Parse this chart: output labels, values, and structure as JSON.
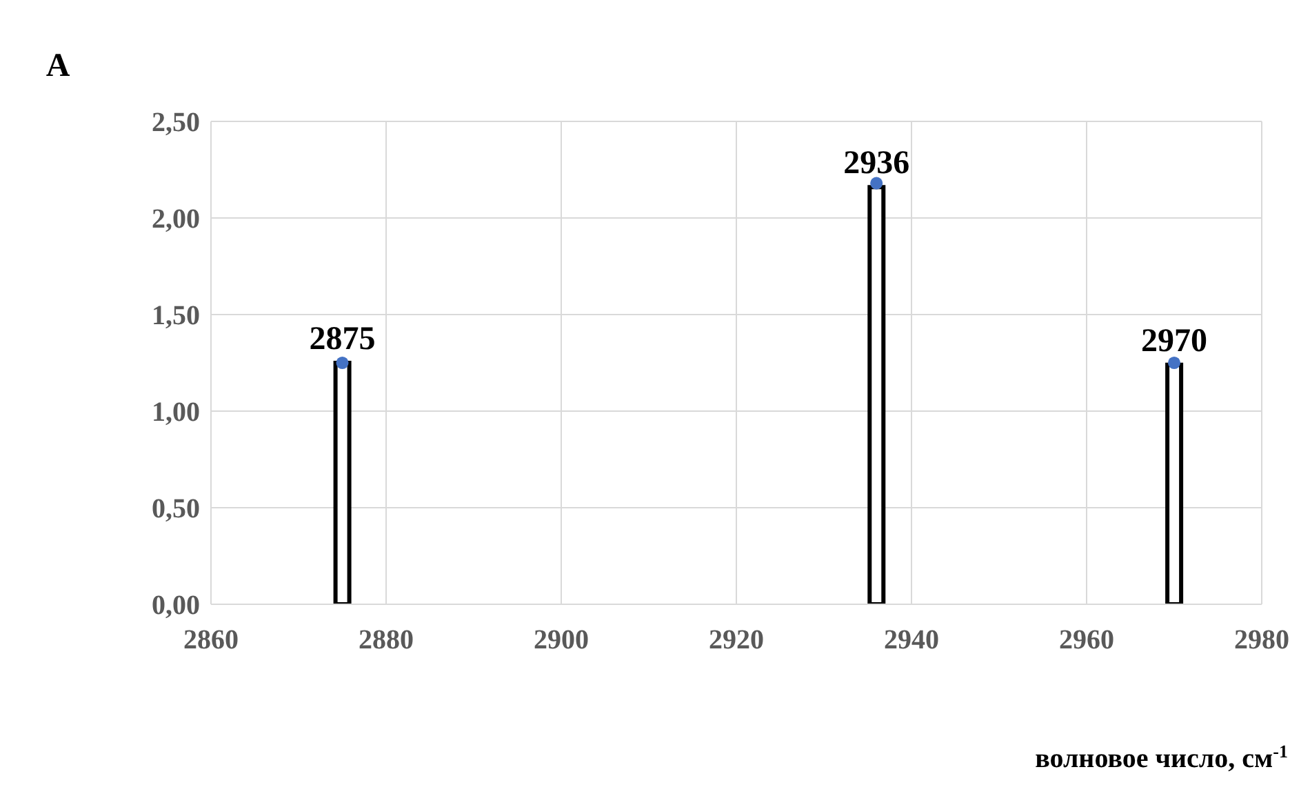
{
  "chart_data": {
    "type": "bar",
    "ylabel": "A",
    "xlabel": "волновое число, см$^{-1}$",
    "x": [
      2875,
      2936,
      2970
    ],
    "series": [
      {
        "color": "#ffffff",
        "values": [
          1.25,
          2.16,
          1.24
        ]
      },
      {
        "type": "scatter",
        "color": "#4472c4",
        "marker": "circle",
        "values": [
          1.25,
          2.18,
          1.25
        ]
      }
    ],
    "xlim": [
      2860,
      2980
    ],
    "xticks": [
      2860,
      2880,
      2900,
      2920,
      2940,
      2960,
      2980
    ],
    "ylim": [
      0,
      2.5
    ],
    "yticks": [
      {
        "value": 0,
        "label": "0,00"
      },
      {
        "value": 0.5,
        "label": "0,50"
      },
      {
        "value": 1,
        "label": "1,00"
      },
      {
        "value": 1.5,
        "label": "1,50"
      },
      {
        "value": 2,
        "label": "2,00"
      },
      {
        "value": 2.5,
        "label": "2,50"
      }
    ],
    "grid": true,
    "annotations": [
      {
        "text": "2875",
        "x": 2875,
        "y": 1.25
      },
      {
        "text": "2936",
        "x": 2936,
        "y": 2.16
      },
      {
        "text": "2970",
        "x": 2970,
        "y": 1.24
      }
    ]
  }
}
